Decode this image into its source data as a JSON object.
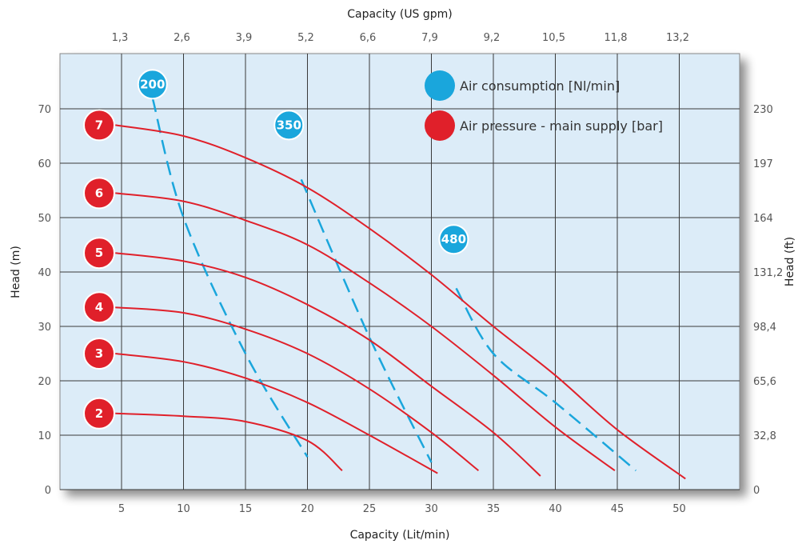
{
  "chart_data": {
    "type": "line",
    "xlabel": "Capacity  (Lit/min)",
    "ylabel": "Head  (m)",
    "x2label": "Capacity  (US gpm)",
    "y2label": "Head  (ft)",
    "xlim": [
      2.5,
      52
    ],
    "ylim": [
      0,
      80
    ],
    "x_ticks": [
      "5",
      "10",
      "15",
      "20",
      "25",
      "30",
      "35",
      "40",
      "45",
      "50"
    ],
    "x_tick_values": [
      5,
      10,
      15,
      20,
      25,
      30,
      35,
      40,
      45,
      50
    ],
    "y_ticks": [
      "0",
      "10",
      "20",
      "30",
      "40",
      "50",
      "60",
      "70"
    ],
    "y_tick_values": [
      0,
      10,
      20,
      30,
      40,
      50,
      60,
      70
    ],
    "x2_ticks": [
      "1,3",
      "2,6",
      "3,9",
      "5,2",
      "6,6",
      "7,9",
      "9,2",
      "10,5",
      "11,8",
      "13,2"
    ],
    "y2_ticks": [
      "0",
      "32,8",
      "65,6",
      "98,4",
      "131,2",
      "164",
      "197",
      "230"
    ],
    "grid": true,
    "background": "#dcecf8",
    "pressure_color": "#e0202a",
    "air_color": "#1aa6dc",
    "legend": [
      {
        "label": "Air consumption   [Nl/min]",
        "color": "#1aa6dc"
      },
      {
        "label": "Air pressure  - main supply   [bar]",
        "color": "#e0202a"
      }
    ],
    "pressure_series": [
      {
        "name": "7",
        "points": [
          [
            4.5,
            67
          ],
          [
            10,
            65
          ],
          [
            15,
            61
          ],
          [
            20,
            55.5
          ],
          [
            25,
            48
          ],
          [
            30,
            39.5
          ],
          [
            35,
            30
          ],
          [
            40,
            21
          ],
          [
            45,
            11
          ],
          [
            50.5,
            2
          ]
        ]
      },
      {
        "name": "6",
        "points": [
          [
            4.5,
            54.5
          ],
          [
            10,
            53
          ],
          [
            15,
            49.5
          ],
          [
            20,
            45
          ],
          [
            25,
            38
          ],
          [
            30,
            30
          ],
          [
            35,
            21
          ],
          [
            40,
            11.5
          ],
          [
            44.8,
            3.5
          ]
        ]
      },
      {
        "name": "5",
        "points": [
          [
            4.5,
            43.5
          ],
          [
            10,
            42
          ],
          [
            15,
            39
          ],
          [
            20,
            34
          ],
          [
            25,
            27.5
          ],
          [
            30,
            19
          ],
          [
            35,
            10.5
          ],
          [
            38.8,
            2.5
          ]
        ]
      },
      {
        "name": "4",
        "points": [
          [
            4.5,
            33.5
          ],
          [
            10,
            32.5
          ],
          [
            15,
            29.5
          ],
          [
            20,
            25
          ],
          [
            25,
            18.5
          ],
          [
            30,
            10.5
          ],
          [
            33.8,
            3.5
          ]
        ]
      },
      {
        "name": "3",
        "points": [
          [
            4.5,
            25
          ],
          [
            10,
            23.5
          ],
          [
            15,
            20.5
          ],
          [
            20,
            16
          ],
          [
            25,
            10
          ],
          [
            30.5,
            3
          ]
        ]
      },
      {
        "name": "2",
        "points": [
          [
            4.5,
            14
          ],
          [
            10,
            13.5
          ],
          [
            15,
            12.5
          ],
          [
            20,
            9
          ],
          [
            22.8,
            3.5
          ]
        ]
      }
    ],
    "air_series": [
      {
        "name": "200",
        "points": [
          [
            7.5,
            72
          ],
          [
            10,
            50
          ],
          [
            15,
            25
          ],
          [
            20,
            6
          ]
        ]
      },
      {
        "name": "350",
        "points": [
          [
            19.5,
            57
          ],
          [
            25,
            28
          ],
          [
            30,
            5
          ]
        ]
      },
      {
        "name": "480",
        "points": [
          [
            32,
            37
          ],
          [
            35,
            25
          ],
          [
            40,
            16
          ],
          [
            46.5,
            3.5
          ]
        ]
      }
    ],
    "air_badges": [
      {
        "label": "200",
        "x": 7.5,
        "y": 74.5
      },
      {
        "label": "350",
        "x": 18.5,
        "y": 67
      },
      {
        "label": "480",
        "x": 31.8,
        "y": 46
      }
    ]
  }
}
